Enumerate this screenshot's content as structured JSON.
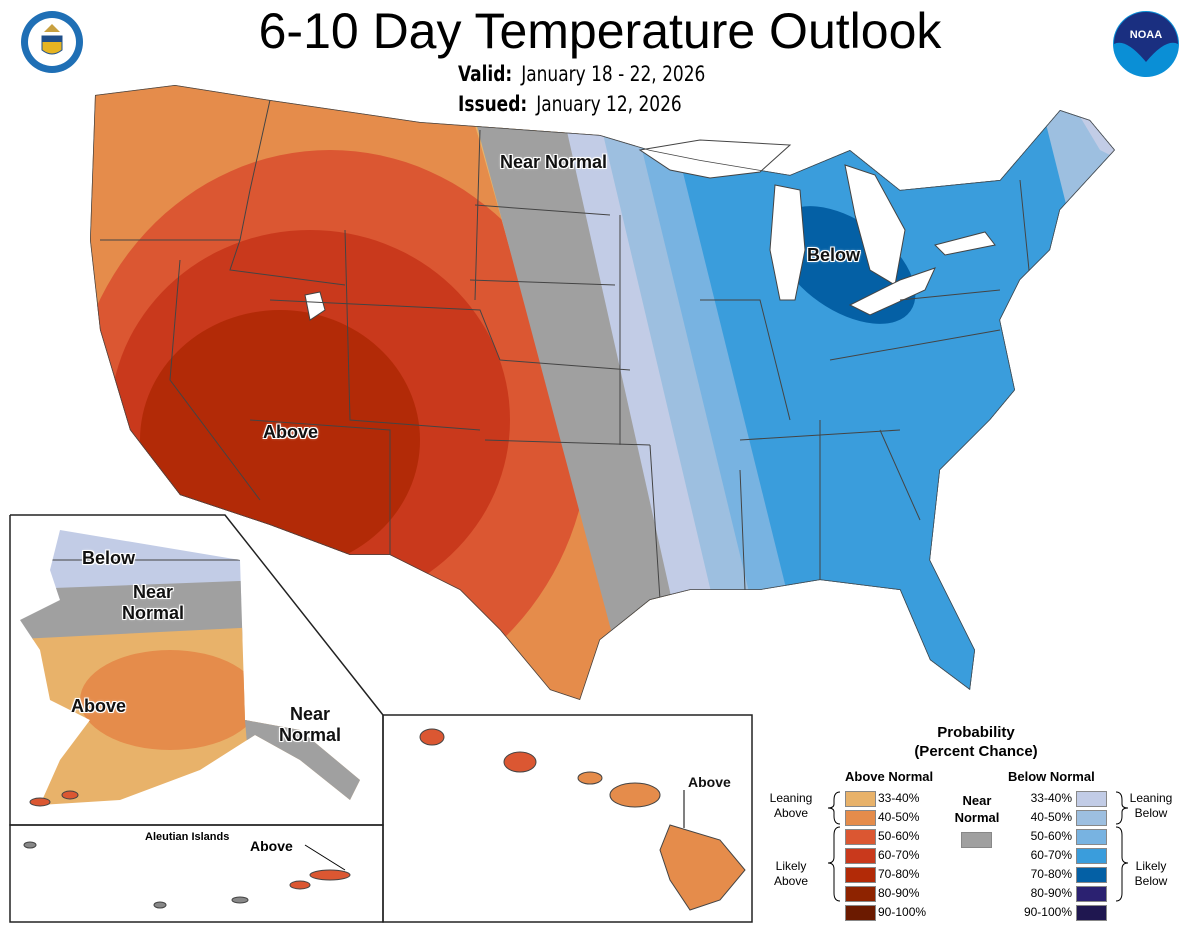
{
  "header": {
    "title": "6-10 Day Temperature Outlook",
    "valid_label": "Valid:",
    "valid_value": "January 18 - 22, 2026",
    "issued_label": "Issued:",
    "issued_value": "January 12, 2026",
    "logos": {
      "left": "department-of-commerce-seal",
      "right": "noaa-logo",
      "noaa_text": "NOAA"
    }
  },
  "map": {
    "labels": {
      "conus_near": "Near Normal",
      "conus_above": "Above",
      "conus_below": "Below",
      "ak_below": "Below",
      "ak_near": "Near Normal",
      "ak_above": "Above",
      "ak_se_near": "Near Normal",
      "hi_above": "Above",
      "aleutian_title": "Aleutian Islands",
      "aleutian_above": "Above"
    }
  },
  "legend": {
    "title1": "Probability",
    "title2": "(Percent Chance)",
    "above_header": "Above Normal",
    "below_header": "Below Normal",
    "near_header1": "Near",
    "near_header2": "Normal",
    "leaning_above1": "Leaning",
    "leaning_above2": "Above",
    "likely_above1": "Likely",
    "likely_above2": "Above",
    "leaning_below1": "Leaning",
    "leaning_below2": "Below",
    "likely_below1": "Likely",
    "likely_below2": "Below",
    "near_color": "#A0A0A0",
    "above": [
      {
        "range": "33-40%",
        "color": "#E8B26A"
      },
      {
        "range": "40-50%",
        "color": "#E58C4B"
      },
      {
        "range": "50-60%",
        "color": "#DB5732"
      },
      {
        "range": "60-70%",
        "color": "#C9391C"
      },
      {
        "range": "70-80%",
        "color": "#B22A07"
      },
      {
        "range": "80-90%",
        "color": "#8E2300"
      },
      {
        "range": "90-100%",
        "color": "#6B1A00"
      }
    ],
    "below": [
      {
        "range": "33-40%",
        "color": "#C2CCE6"
      },
      {
        "range": "40-50%",
        "color": "#9DBFE0"
      },
      {
        "range": "50-60%",
        "color": "#78B3E1"
      },
      {
        "range": "60-70%",
        "color": "#3A9DDC"
      },
      {
        "range": "70-80%",
        "color": "#0460A5"
      },
      {
        "range": "80-90%",
        "color": "#2B2171"
      },
      {
        "range": "90-100%",
        "color": "#1F1750"
      }
    ]
  }
}
